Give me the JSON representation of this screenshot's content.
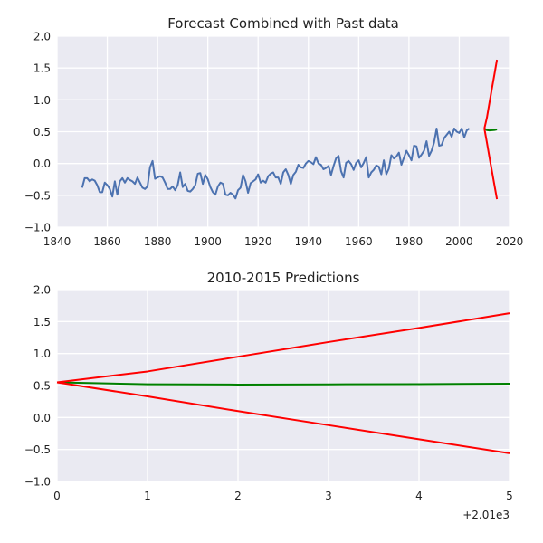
{
  "chart_data": [
    {
      "type": "line",
      "title": "Forecast Combined with Past data",
      "xlabel": "",
      "ylabel": "",
      "xlim": [
        1840,
        2020
      ],
      "ylim": [
        -1.0,
        2.0
      ],
      "xticks": [
        "1840",
        "1860",
        "1880",
        "1900",
        "1920",
        "1940",
        "1960",
        "1980",
        "2000",
        "2020"
      ],
      "yticks": [
        "−1.0",
        "−0.5",
        "0.0",
        "0.5",
        "1.0",
        "1.5",
        "2.0"
      ],
      "grid": true,
      "series": [
        {
          "color": "#4c72b0",
          "x_start": 1850,
          "x_step": 1,
          "values": [
            -0.38,
            -0.23,
            -0.23,
            -0.28,
            -0.25,
            -0.27,
            -0.34,
            -0.45,
            -0.45,
            -0.3,
            -0.34,
            -0.4,
            -0.52,
            -0.28,
            -0.49,
            -0.28,
            -0.23,
            -0.3,
            -0.23,
            -0.26,
            -0.28,
            -0.32,
            -0.22,
            -0.3,
            -0.38,
            -0.4,
            -0.36,
            -0.06,
            0.04,
            -0.24,
            -0.22,
            -0.2,
            -0.22,
            -0.3,
            -0.4,
            -0.4,
            -0.36,
            -0.42,
            -0.34,
            -0.14,
            -0.37,
            -0.32,
            -0.43,
            -0.44,
            -0.4,
            -0.34,
            -0.16,
            -0.15,
            -0.32,
            -0.18,
            -0.25,
            -0.37,
            -0.45,
            -0.49,
            -0.36,
            -0.3,
            -0.32,
            -0.49,
            -0.5,
            -0.46,
            -0.49,
            -0.55,
            -0.42,
            -0.38,
            -0.18,
            -0.28,
            -0.46,
            -0.31,
            -0.28,
            -0.25,
            -0.17,
            -0.3,
            -0.27,
            -0.3,
            -0.2,
            -0.16,
            -0.14,
            -0.22,
            -0.22,
            -0.32,
            -0.14,
            -0.09,
            -0.18,
            -0.32,
            -0.18,
            -0.13,
            -0.02,
            -0.06,
            -0.07,
            0.0,
            0.04,
            0.02,
            -0.01,
            0.1,
            0.0,
            -0.02,
            -0.09,
            -0.07,
            -0.04,
            -0.18,
            -0.04,
            0.08,
            0.12,
            -0.12,
            -0.22,
            0.01,
            0.04,
            -0.01,
            -0.1,
            0.01,
            0.05,
            -0.06,
            0.01,
            0.1,
            -0.22,
            -0.14,
            -0.1,
            -0.03,
            -0.05,
            -0.17,
            0.05,
            -0.17,
            -0.08,
            0.13,
            0.08,
            0.11,
            0.17,
            -0.02,
            0.09,
            0.2,
            0.13,
            0.05,
            0.28,
            0.27,
            0.09,
            0.14,
            0.2,
            0.35,
            0.12,
            0.2,
            0.33,
            0.55,
            0.28,
            0.29,
            0.4,
            0.45,
            0.5,
            0.42,
            0.55,
            0.5,
            0.48,
            0.55,
            0.41,
            0.52,
            0.55
          ]
        },
        {
          "color": "#008000",
          "x": [
            2010,
            2011,
            2012,
            2013,
            2014,
            2015
          ],
          "values": [
            0.55,
            0.525,
            0.52,
            0.523,
            0.527,
            0.535
          ]
        },
        {
          "color": "#ff0000",
          "x": [
            2010,
            2011,
            2012,
            2013,
            2014,
            2015
          ],
          "values": [
            0.55,
            0.72,
            0.95,
            1.18,
            1.4,
            1.63
          ]
        },
        {
          "color": "#ff0000",
          "x": [
            2010,
            2011,
            2012,
            2013,
            2014,
            2015
          ],
          "values": [
            0.55,
            0.33,
            0.1,
            -0.12,
            -0.34,
            -0.56
          ]
        }
      ]
    },
    {
      "type": "line",
      "title": "2010-2015 Predictions",
      "xlabel": "",
      "ylabel": "",
      "xlim": [
        0,
        5
      ],
      "ylim": [
        -1.0,
        2.0
      ],
      "xticks": [
        "0",
        "1",
        "2",
        "3",
        "4",
        "5"
      ],
      "yticks": [
        "−1.0",
        "−0.5",
        "0.0",
        "0.5",
        "1.0",
        "1.5",
        "2.0"
      ],
      "x_offset_label": "+2.01e3",
      "grid": true,
      "series": [
        {
          "color": "#008000",
          "x": [
            0,
            1,
            2,
            3,
            4,
            5
          ],
          "values": [
            0.55,
            0.52,
            0.515,
            0.518,
            0.522,
            0.528
          ]
        },
        {
          "color": "#ff0000",
          "x": [
            0,
            1,
            2,
            3,
            4,
            5
          ],
          "values": [
            0.55,
            0.72,
            0.95,
            1.18,
            1.4,
            1.63
          ]
        },
        {
          "color": "#ff0000",
          "x": [
            0,
            1,
            2,
            3,
            4,
            5
          ],
          "values": [
            0.55,
            0.33,
            0.1,
            -0.12,
            -0.34,
            -0.56
          ]
        }
      ]
    }
  ],
  "style": {
    "plot_background": "#eaeaf2",
    "grid_color": "#ffffff"
  }
}
